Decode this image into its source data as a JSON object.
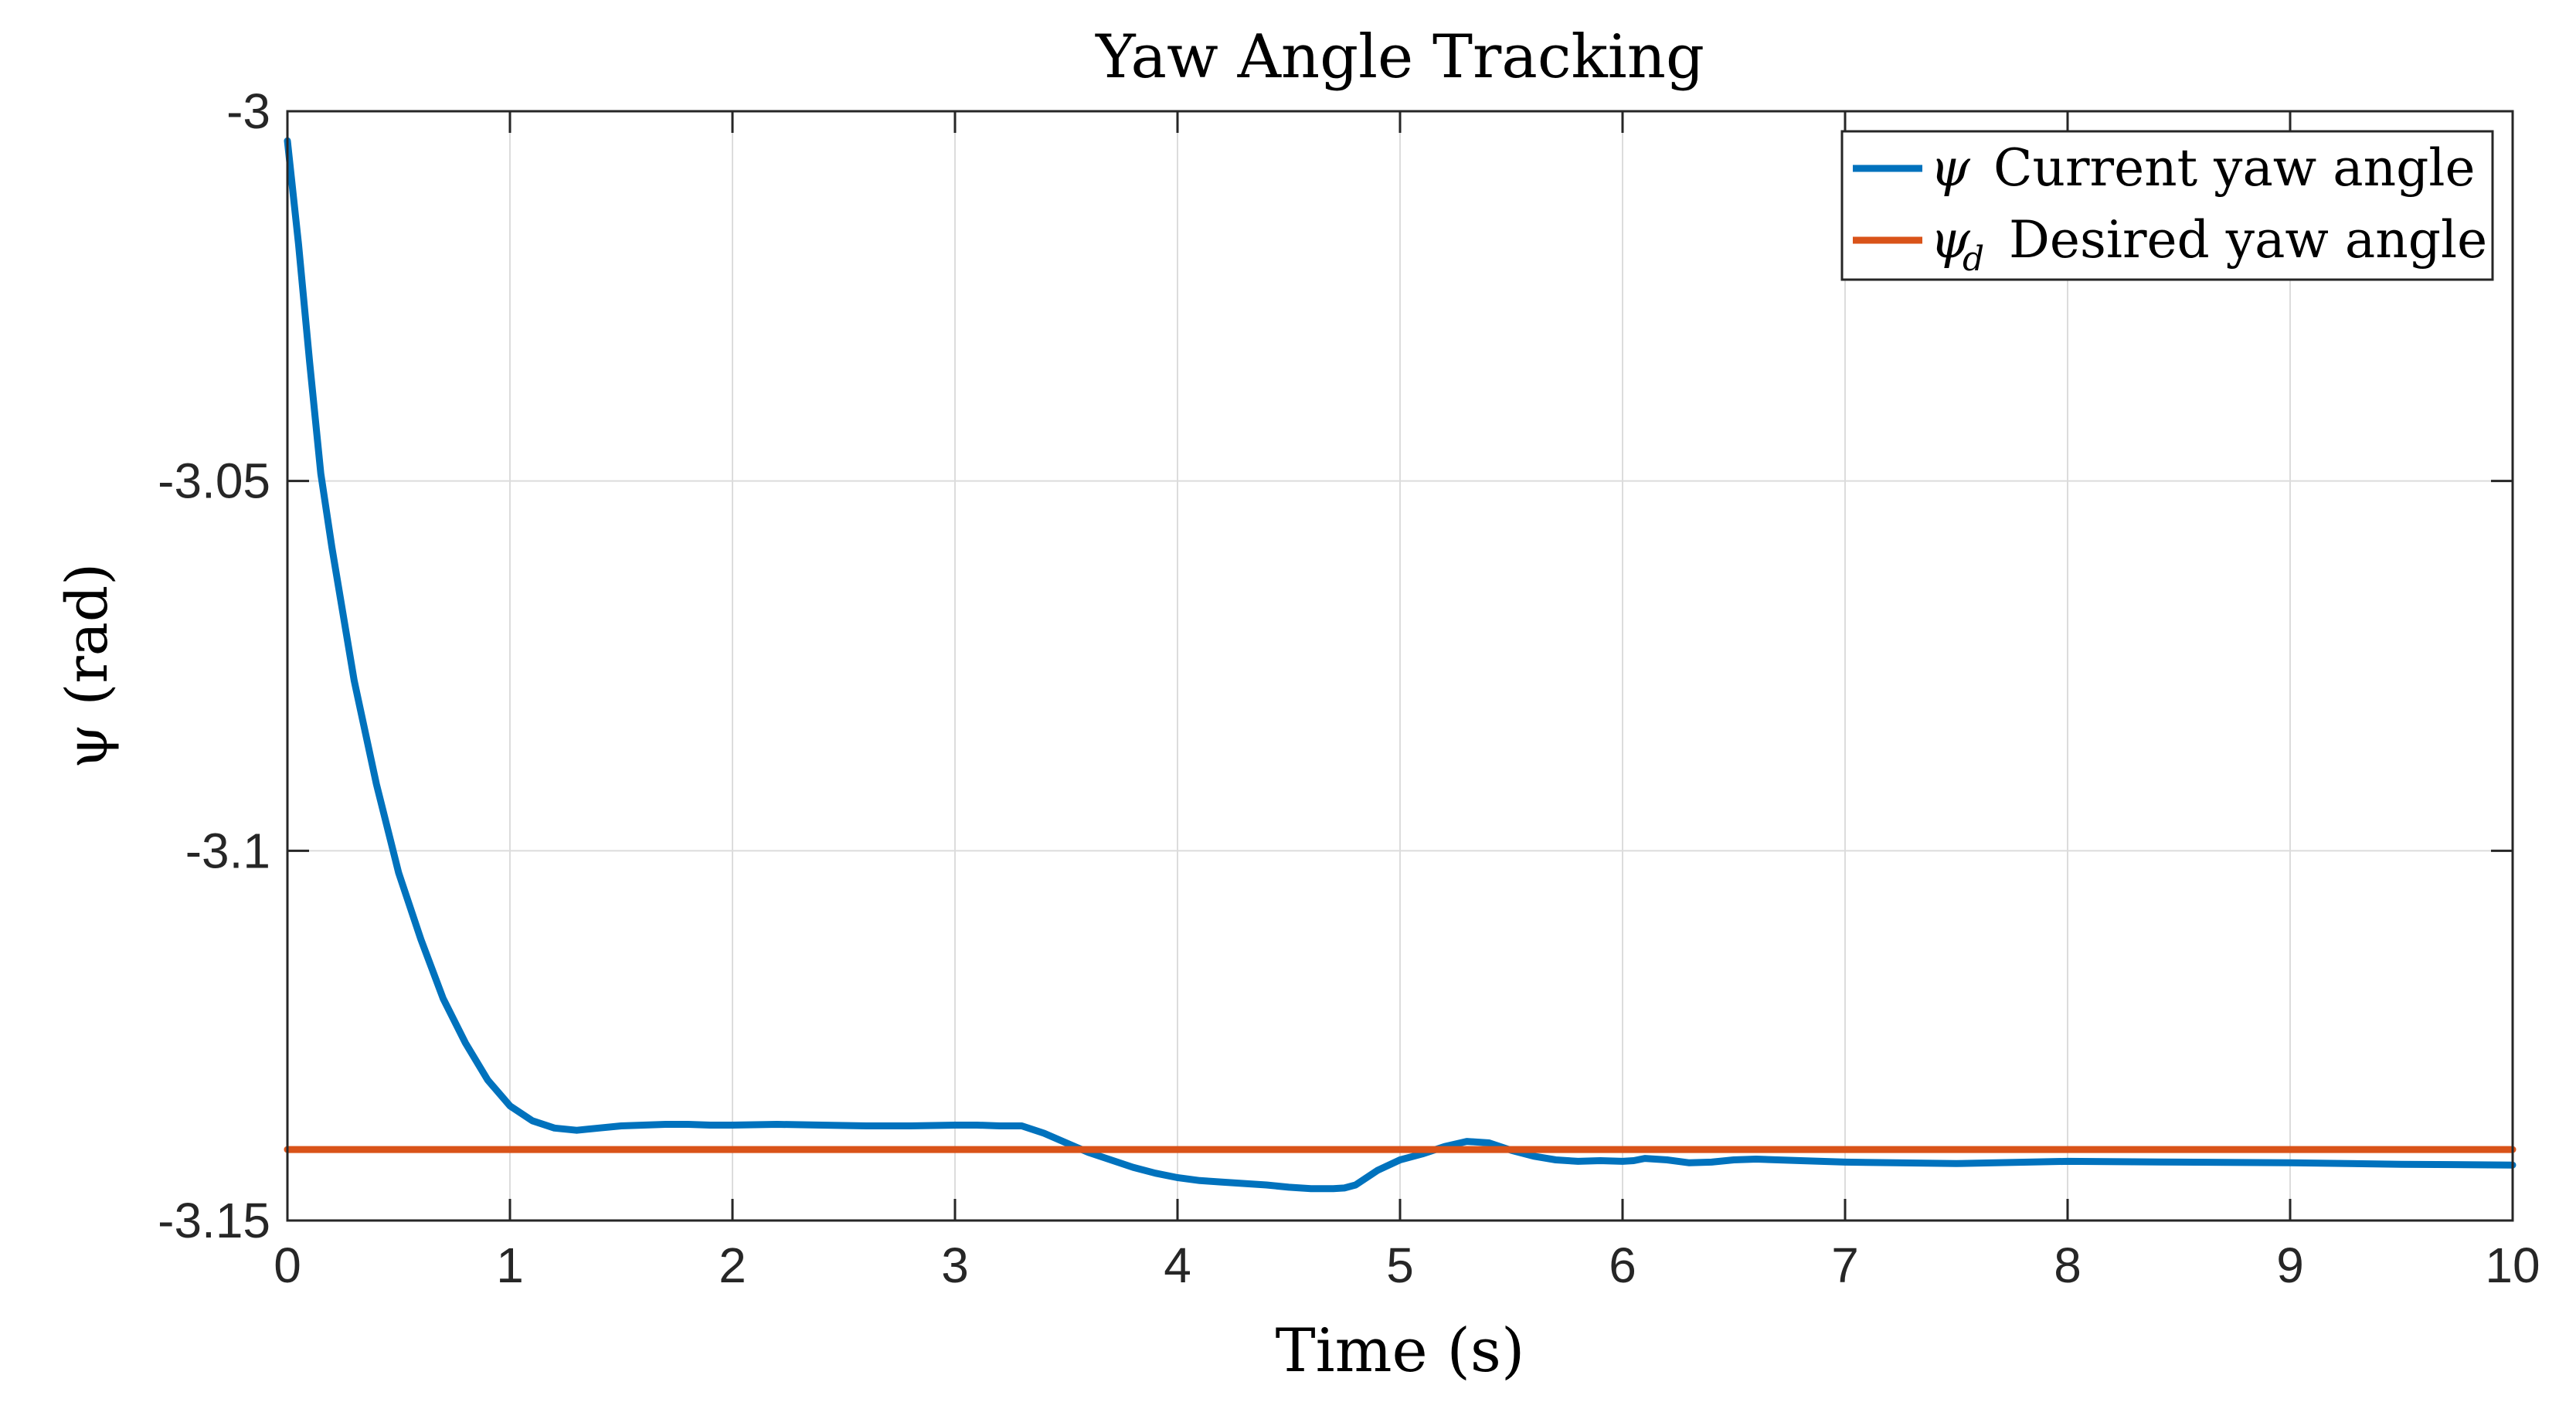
{
  "chart_data": {
    "type": "line",
    "title": "Yaw Angle Tracking",
    "xlabel": "Time (s)",
    "ylabel": "ψ (rad)",
    "xlim": [
      0,
      10
    ],
    "ylim": [
      -3.15,
      -3
    ],
    "xticks": [
      0,
      1,
      2,
      3,
      4,
      5,
      6,
      7,
      8,
      9,
      10
    ],
    "xtick_labels": [
      "0",
      "1",
      "2",
      "3",
      "4",
      "5",
      "6",
      "7",
      "8",
      "9",
      "10"
    ],
    "yticks": [
      -3,
      -3.05,
      -3.1,
      -3.15
    ],
    "ytick_labels": [
      "-3",
      "-3.05",
      "-3.1",
      "-3.15"
    ],
    "grid": true,
    "legend_position": "top-right",
    "series": [
      {
        "name": "ψ Current yaw angle",
        "symbol": "ψ",
        "label": "Current yaw angle",
        "color": "#0072BD",
        "x": [
          0,
          0.05,
          0.1,
          0.15,
          0.2,
          0.3,
          0.4,
          0.5,
          0.6,
          0.7,
          0.8,
          0.9,
          1.0,
          1.1,
          1.2,
          1.3,
          1.4,
          1.5,
          1.6,
          1.7,
          1.8,
          1.9,
          2.0,
          2.2,
          2.4,
          2.6,
          2.8,
          3.0,
          3.1,
          3.2,
          3.3,
          3.4,
          3.5,
          3.6,
          3.7,
          3.8,
          3.9,
          4.0,
          4.1,
          4.2,
          4.3,
          4.4,
          4.5,
          4.6,
          4.7,
          4.75,
          4.8,
          4.9,
          5.0,
          5.1,
          5.2,
          5.3,
          5.4,
          5.5,
          5.6,
          5.7,
          5.8,
          5.9,
          6.0,
          6.05,
          6.1,
          6.2,
          6.3,
          6.4,
          6.5,
          6.6,
          6.8,
          7.0,
          7.5,
          8.0,
          8.5,
          9.0,
          9.5,
          10.0
        ],
        "values": [
          -3.004,
          -3.018,
          -3.034,
          -3.049,
          -3.059,
          -3.077,
          -3.091,
          -3.103,
          -3.112,
          -3.12,
          -3.126,
          -3.131,
          -3.1345,
          -3.1365,
          -3.1375,
          -3.1378,
          -3.1375,
          -3.1372,
          -3.1371,
          -3.137,
          -3.137,
          -3.1371,
          -3.1371,
          -3.137,
          -3.1371,
          -3.1372,
          -3.1372,
          -3.1371,
          -3.1371,
          -3.1372,
          -3.1372,
          -3.1382,
          -3.1395,
          -3.1408,
          -3.1418,
          -3.1428,
          -3.1436,
          -3.1442,
          -3.1446,
          -3.1448,
          -3.145,
          -3.1452,
          -3.1455,
          -3.1457,
          -3.1457,
          -3.1456,
          -3.1452,
          -3.1432,
          -3.1418,
          -3.141,
          -3.14,
          -3.1393,
          -3.1395,
          -3.1405,
          -3.1413,
          -3.1418,
          -3.142,
          -3.1419,
          -3.142,
          -3.1419,
          -3.1416,
          -3.1418,
          -3.1422,
          -3.1421,
          -3.1418,
          -3.1417,
          -3.1419,
          -3.1421,
          -3.1423,
          -3.142,
          -3.1421,
          -3.1422,
          -3.1424,
          -3.1425
        ]
      },
      {
        "name": "ψd Desired yaw angle",
        "symbol": "ψ",
        "subscript": "d",
        "label": "Desired yaw angle",
        "color": "#D95319",
        "x": [
          0,
          10
        ],
        "values": [
          -3.1404,
          -3.1404
        ]
      }
    ]
  }
}
